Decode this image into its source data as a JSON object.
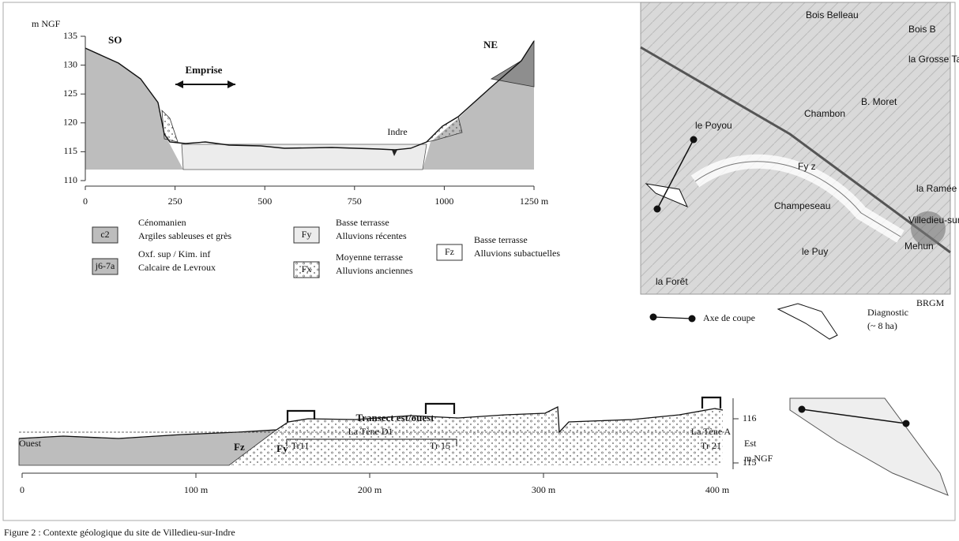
{
  "figure": {
    "caption": "Figure 2 : Contexte géologique du site de Villedieu-sur-Indre"
  },
  "section": {
    "y_unit": "m NGF",
    "yticks": [
      110,
      115,
      120,
      125,
      130,
      135
    ],
    "xticks": [
      0,
      250,
      500,
      750,
      1000,
      {
        "value": 1250,
        "label": "1250 m"
      }
    ],
    "labels": {
      "sw": "SO",
      "ne": "NE",
      "emprise": "Emprise",
      "river": "Indre"
    }
  },
  "legend": [
    {
      "code": "c2",
      "lines": [
        "Cénomanien",
        "Argiles sableuses et grès"
      ]
    },
    {
      "code": "j6-7a",
      "lines": [
        "Oxf. sup / Kim. inf",
        "Calcaire de Levroux"
      ]
    },
    {
      "code": "Fy",
      "lines": [
        "Basse terrasse",
        "Alluvions récentes"
      ]
    },
    {
      "code": "Fx",
      "lines": [
        "Moyenne terrasse",
        "Alluvions anciennes"
      ]
    },
    {
      "code": "Fz",
      "lines": [
        "Basse terrasse",
        "Alluvions subactuelles"
      ]
    }
  ],
  "map": {
    "source": "BRGM",
    "places": [
      "Bois Belleau",
      "Bois B",
      "Chambon",
      "le Poyou",
      "B. Moret",
      "Fy z",
      "Champeseau",
      "Villedieu-sur-Indre",
      "Mehun",
      "la Ramée",
      "la Grosse Taille",
      "le Puy",
      "la Forêt"
    ],
    "legend": {
      "axis": "Axe de coupe",
      "diagnostic": [
        "Diagnostic",
        "(~ 8 ha)"
      ]
    }
  },
  "transect": {
    "title": "Transect est/ouest",
    "west": "Ouest",
    "east": "Est",
    "y_unit": "m NGF",
    "periods": [
      "La Tène D1",
      "La Tène A"
    ],
    "trenches": [
      "Tr11",
      "Tr 15",
      "Tr 21"
    ],
    "units": [
      "Fz",
      "Fy"
    ],
    "xticks": [
      0,
      {
        "value": 100,
        "label": "100 m"
      },
      {
        "value": 200,
        "label": "200 m"
      },
      {
        "value": 300,
        "label": "300 m"
      },
      {
        "value": 400,
        "label": "400 m"
      }
    ],
    "yticks": [
      115,
      116
    ]
  }
}
